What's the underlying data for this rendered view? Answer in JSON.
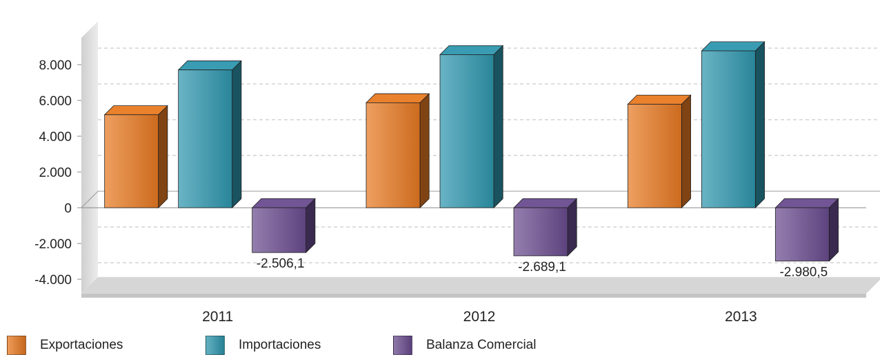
{
  "chart_data": {
    "type": "bar",
    "categories": [
      "2011",
      "2012",
      "2013"
    ],
    "series": [
      {
        "name": "Exportaciones",
        "values": [
          5200,
          5870,
          5790
        ],
        "color": "#E87A22"
      },
      {
        "name": "Importaciones",
        "values": [
          7706.1,
          8559.1,
          8770.5
        ],
        "color": "#2F97AE"
      },
      {
        "name": "Balanza Comercial",
        "values": [
          -2506.1,
          -2689.1,
          -2980.5
        ],
        "color": "#6A4C8F"
      }
    ],
    "data_labels": {
      "Balanza Comercial": [
        "-2.506,1",
        "-2.689,1",
        "-2.980,5"
      ]
    },
    "y_ticks": [
      -4000,
      -2000,
      0,
      2000,
      4000,
      6000,
      8000
    ],
    "y_tick_labels": [
      "-4.000",
      "-2.000",
      "0",
      "2.000",
      "4.000",
      "6.000",
      "8.000"
    ],
    "ylim": [
      -4800,
      9500
    ],
    "grid": true,
    "legend_position": "bottom-left",
    "title": "",
    "xlabel": "",
    "ylabel": ""
  }
}
